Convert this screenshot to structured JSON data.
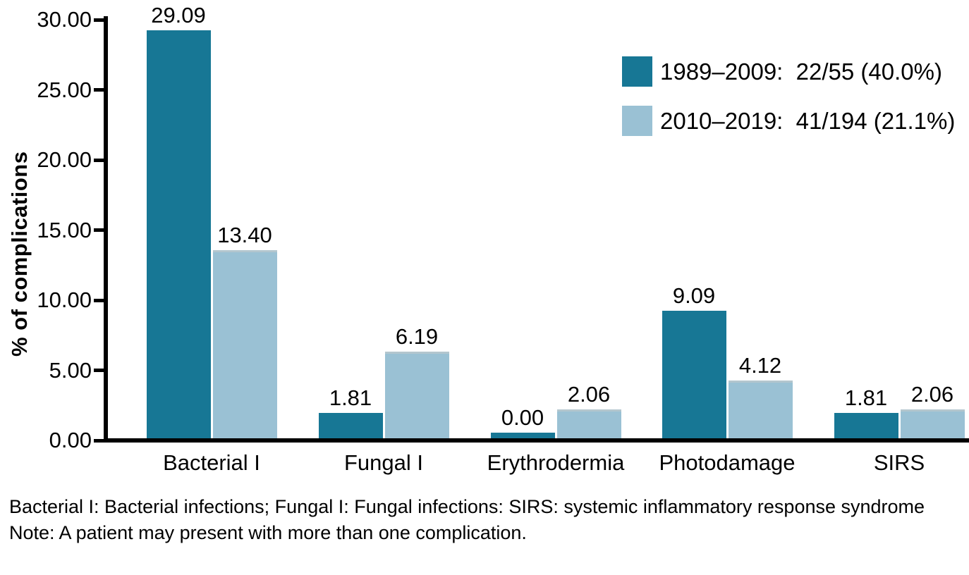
{
  "chart_data": {
    "type": "bar",
    "title": "",
    "ylabel": "% of complications",
    "xlabel": "",
    "ylim": [
      0,
      30
    ],
    "ytick_step": 5,
    "ytick_decimals": 2,
    "value_label_decimals": 2,
    "grid": false,
    "legend_position": "top-right",
    "categories": [
      "Bacterial I",
      "Fungal I",
      "Erythrodermia",
      "Photodamage",
      "SIRS"
    ],
    "series": [
      {
        "name": "1989–2009:  22/55 (40.0%)",
        "color": "#177795",
        "values": [
          29.09,
          1.81,
          0.0,
          9.09,
          1.81
        ]
      },
      {
        "name": "2010–2019:  41/194 (21.1%)",
        "color": "#9AC1D4",
        "values": [
          13.4,
          6.19,
          2.06,
          4.12,
          2.06
        ]
      }
    ]
  },
  "footnotes": {
    "line1": "Bacterial I: Bacterial infections; Fungal I: Fungal infections: SIRS: systemic inflammatory response syndrome",
    "line2": "Note: A patient may present with more than one complication."
  }
}
